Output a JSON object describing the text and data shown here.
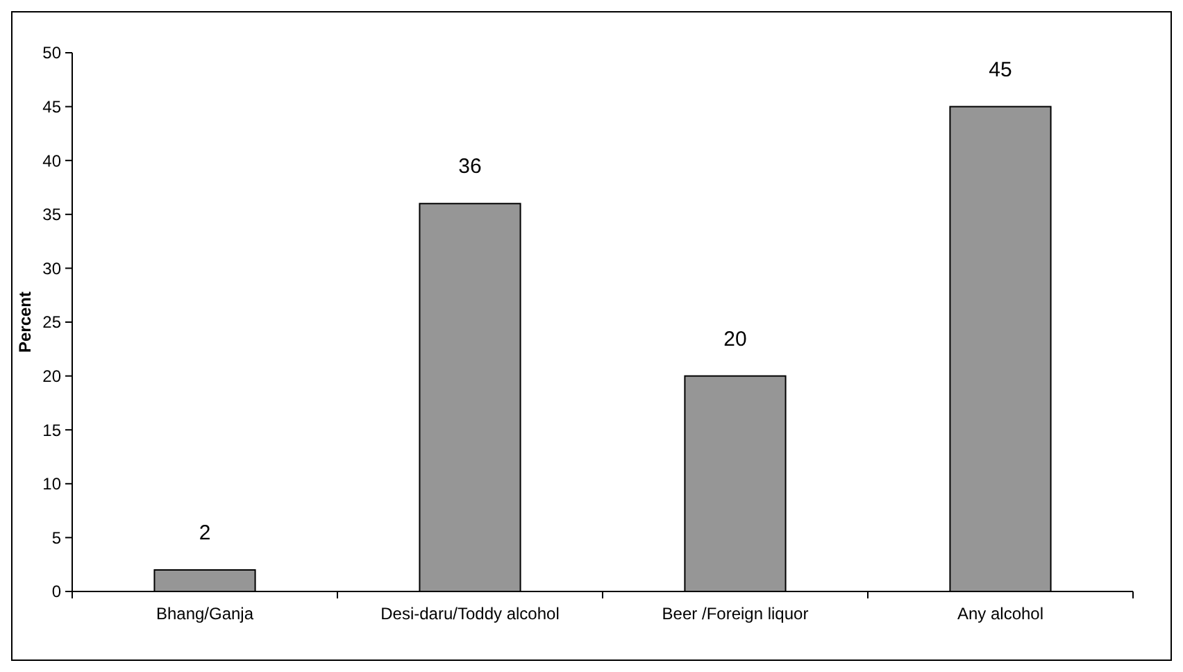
{
  "chart_data": {
    "type": "bar",
    "ylabel": "Percent",
    "categories": [
      "Bhang/Ganja",
      "Desi-daru/Toddy alcohol",
      "Beer /Foreign liquor",
      "Any alcohol"
    ],
    "values": [
      2,
      36,
      20,
      45
    ],
    "color": "#969696",
    "ylim": [
      0,
      50
    ],
    "yticks": [
      0,
      5,
      10,
      15,
      20,
      25,
      30,
      35,
      40,
      45,
      50
    ],
    "grid": false,
    "data_labels": true
  }
}
